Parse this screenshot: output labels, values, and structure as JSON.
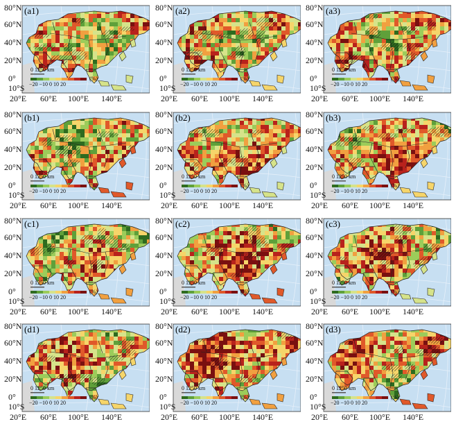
{
  "lat_labels": [
    "80°N",
    "60°N",
    "40°N",
    "20°N",
    "0°",
    "10°S"
  ],
  "lon_labels": [
    "20°E",
    "60°E",
    "100°E",
    "140°E"
  ],
  "scale_bar": "0   1250 km",
  "colorbar": {
    "ticks": "−20 −10  0  10  20",
    "unit": "(%)",
    "colors": [
      "#2e6b1f",
      "#5fa03a",
      "#9ccc5a",
      "#d6e38a",
      "#f6d56a",
      "#f1a040",
      "#e0592a",
      "#b8221c",
      "#7a1010"
    ]
  },
  "colors": {
    "ocean": "#c7dff2",
    "ocean_grid": "#e6f0fa",
    "land_none": "#d9d9d9",
    "border": "#222222"
  },
  "panels": [
    {
      "label": "(a1)"
    },
    {
      "label": "(a2)"
    },
    {
      "label": "(a3)"
    },
    {
      "label": "(b1)"
    },
    {
      "label": "(b2)"
    },
    {
      "label": "(b3)"
    },
    {
      "label": "(c1)"
    },
    {
      "label": "(c2)"
    },
    {
      "label": "(c3)"
    },
    {
      "label": "(d1)"
    },
    {
      "label": "(d2)"
    },
    {
      "label": "(d3)"
    }
  ]
}
